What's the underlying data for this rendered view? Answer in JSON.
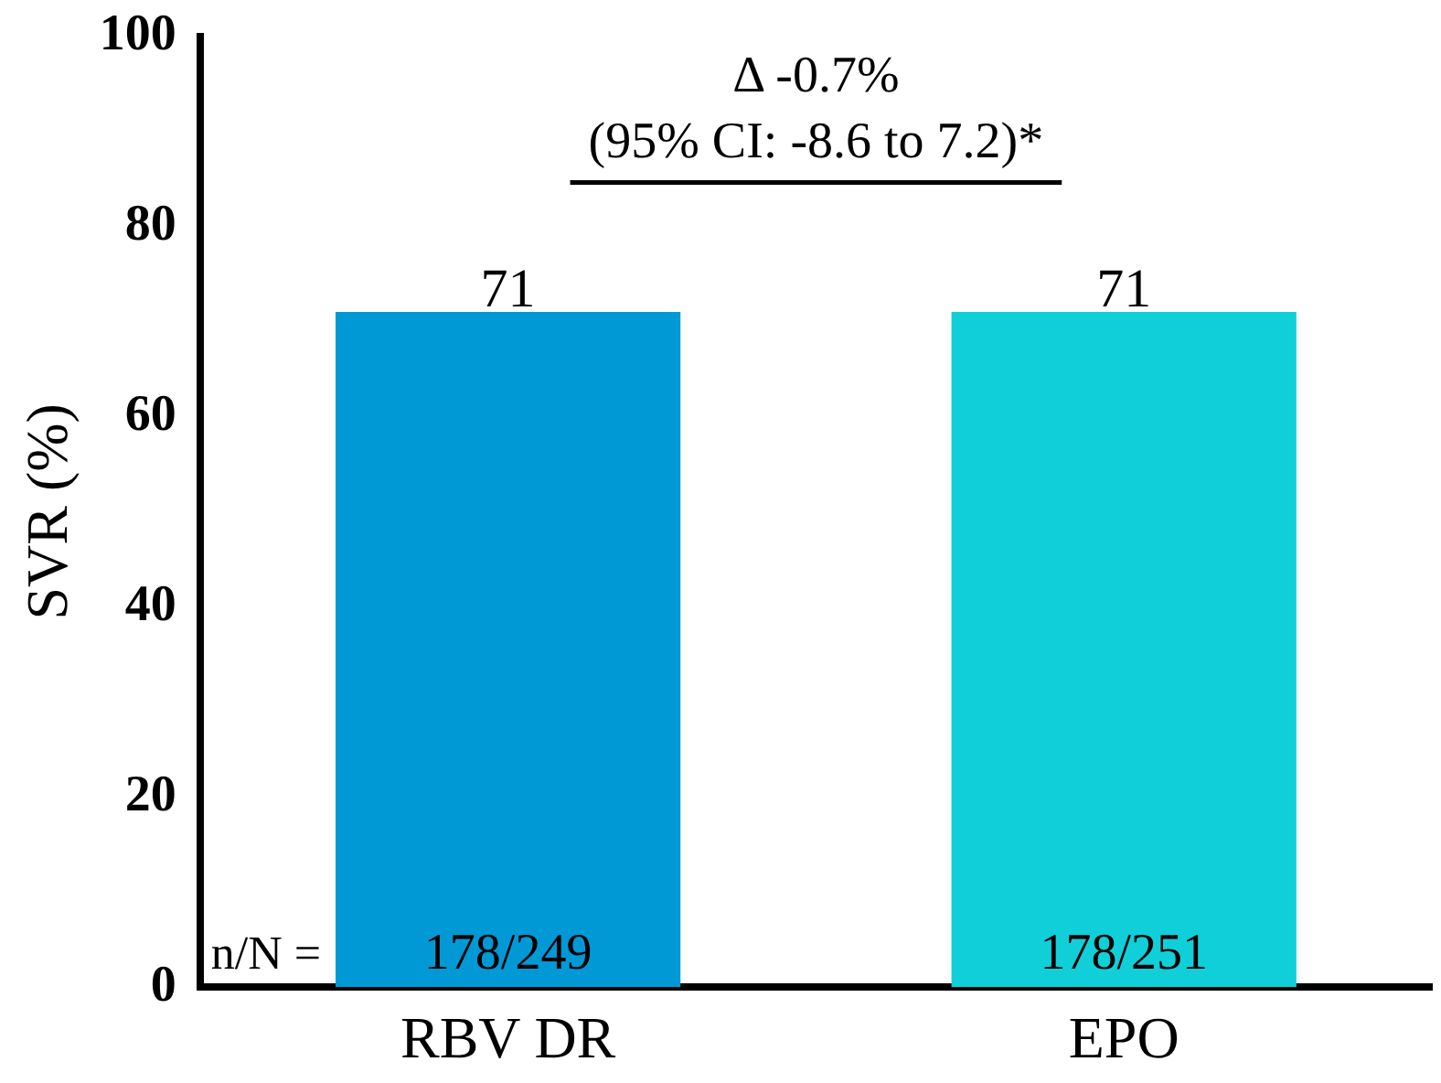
{
  "chart_data": {
    "type": "bar",
    "ylabel": "SVR (%)",
    "categories": [
      "RBV DR",
      "EPO"
    ],
    "values": [
      71,
      71
    ],
    "colors": [
      "#0099d6",
      "#10cfd8"
    ],
    "ylim": [
      0,
      100
    ],
    "yticks": [
      0,
      20,
      40,
      60,
      80,
      100
    ],
    "data_labels": true,
    "annotations": [
      "Δ -0.7%",
      "(95% CI: -8.6 to 7.2)*",
      "n/N =",
      "178/249",
      "178/251"
    ]
  }
}
